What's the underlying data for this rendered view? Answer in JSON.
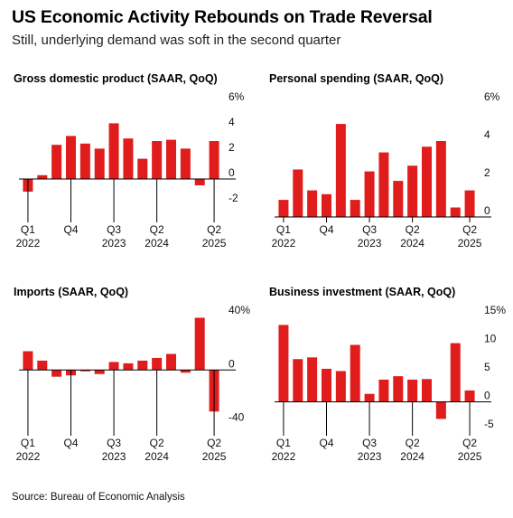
{
  "header": {
    "title": "US Economic Activity Rebounds on Trade Reversal",
    "subtitle": "Still, underlying demand was soft in the second quarter"
  },
  "footer": {
    "source": "Source: Bureau of Economic Analysis"
  },
  "colors": {
    "bar": "#e01c1c",
    "axis": "#000000",
    "text": "#111111"
  },
  "chart_data": [
    {
      "type": "bar",
      "title": "Gross domestic product (SAAR, QoQ)",
      "ylim": [
        -3,
        6
      ],
      "yticks": [
        {
          "v": 6,
          "label": "6%"
        },
        {
          "v": 4,
          "label": "4"
        },
        {
          "v": 2,
          "label": "2"
        },
        {
          "v": 0,
          "label": "0"
        },
        {
          "v": -2,
          "label": "-2"
        }
      ],
      "categories": [
        "Q1 2022",
        "Q2 2022",
        "Q3 2022",
        "Q4 2022",
        "Q1 2023",
        "Q2 2023",
        "Q3 2023",
        "Q4 2023",
        "Q1 2024",
        "Q2 2024",
        "Q3 2024",
        "Q4 2024",
        "Q1 2025",
        "Q2 2025"
      ],
      "xtick_labels": [
        {
          "i": 0,
          "top": "Q1",
          "bottom": "2022"
        },
        {
          "i": 3,
          "top": "Q4",
          "bottom": ""
        },
        {
          "i": 6,
          "top": "Q3",
          "bottom": "2023"
        },
        {
          "i": 9,
          "top": "Q2",
          "bottom": "2024"
        },
        {
          "i": 13,
          "top": "Q2",
          "bottom": "2025"
        }
      ],
      "values": [
        -1.0,
        0.3,
        2.7,
        3.4,
        2.8,
        2.4,
        4.4,
        3.2,
        1.6,
        3.0,
        3.1,
        2.4,
        -0.5,
        3.0
      ],
      "grid": false
    },
    {
      "type": "bar",
      "title": "Personal spending (SAAR, QoQ)",
      "ylim": [
        0,
        6
      ],
      "yticks": [
        {
          "v": 6,
          "label": "6%"
        },
        {
          "v": 4,
          "label": "4"
        },
        {
          "v": 2,
          "label": "2"
        },
        {
          "v": 0,
          "label": "0"
        }
      ],
      "categories": [
        "Q1 2022",
        "Q2 2022",
        "Q3 2022",
        "Q4 2022",
        "Q1 2023",
        "Q2 2023",
        "Q3 2023",
        "Q4 2023",
        "Q1 2024",
        "Q2 2024",
        "Q3 2024",
        "Q4 2024",
        "Q1 2025",
        "Q2 2025"
      ],
      "xtick_labels": [
        {
          "i": 0,
          "top": "Q1",
          "bottom": "2022"
        },
        {
          "i": 3,
          "top": "Q4",
          "bottom": ""
        },
        {
          "i": 6,
          "top": "Q3",
          "bottom": "2023"
        },
        {
          "i": 9,
          "top": "Q2",
          "bottom": "2024"
        },
        {
          "i": 13,
          "top": "Q2",
          "bottom": "2025"
        }
      ],
      "values": [
        0.9,
        2.5,
        1.4,
        1.2,
        4.9,
        0.9,
        2.4,
        3.4,
        1.9,
        2.7,
        3.7,
        4.0,
        0.5,
        1.4
      ],
      "grid": false
    },
    {
      "type": "bar",
      "title": "Imports (SAAR, QoQ)",
      "ylim": [
        -45,
        40
      ],
      "yticks": [
        {
          "v": 40,
          "label": "40%"
        },
        {
          "v": 0,
          "label": "0"
        },
        {
          "v": -40,
          "label": "-40"
        }
      ],
      "categories": [
        "Q1 2022",
        "Q2 2022",
        "Q3 2022",
        "Q4 2022",
        "Q1 2023",
        "Q2 2023",
        "Q3 2023",
        "Q4 2023",
        "Q1 2024",
        "Q2 2024",
        "Q3 2024",
        "Q4 2024",
        "Q1 2025",
        "Q2 2025"
      ],
      "xtick_labels": [
        {
          "i": 0,
          "top": "Q1",
          "bottom": "2022"
        },
        {
          "i": 3,
          "top": "Q4",
          "bottom": ""
        },
        {
          "i": 6,
          "top": "Q3",
          "bottom": "2023"
        },
        {
          "i": 9,
          "top": "Q2",
          "bottom": "2024"
        },
        {
          "i": 13,
          "top": "Q2",
          "bottom": "2025"
        }
      ],
      "values": [
        14.0,
        7.0,
        -5.0,
        -4.0,
        -1.0,
        -3.0,
        6.0,
        5.0,
        7.0,
        9.0,
        12.0,
        -2.0,
        39.0,
        -31.0
      ],
      "grid": false
    },
    {
      "type": "bar",
      "title": "Business investment (SAAR, QoQ)",
      "ylim": [
        -5,
        15
      ],
      "yticks": [
        {
          "v": 15,
          "label": "15%"
        },
        {
          "v": 10,
          "label": "10"
        },
        {
          "v": 5,
          "label": "5"
        },
        {
          "v": 0,
          "label": "0"
        },
        {
          "v": -5,
          "label": "-5"
        }
      ],
      "categories": [
        "Q1 2022",
        "Q2 2022",
        "Q3 2022",
        "Q4 2022",
        "Q1 2023",
        "Q2 2023",
        "Q3 2023",
        "Q4 2023",
        "Q1 2024",
        "Q2 2024",
        "Q3 2024",
        "Q4 2024",
        "Q1 2025",
        "Q2 2025"
      ],
      "xtick_labels": [
        {
          "i": 0,
          "top": "Q1",
          "bottom": "2022"
        },
        {
          "i": 3,
          "top": "Q4",
          "bottom": ""
        },
        {
          "i": 6,
          "top": "Q3",
          "bottom": "2023"
        },
        {
          "i": 9,
          "top": "Q2",
          "bottom": "2024"
        },
        {
          "i": 13,
          "top": "Q2",
          "bottom": "2025"
        }
      ],
      "values": [
        13.5,
        7.5,
        7.8,
        5.8,
        5.4,
        10.0,
        1.4,
        3.9,
        4.5,
        3.9,
        4.0,
        -3.0,
        10.3,
        2.0
      ],
      "grid": false
    }
  ]
}
